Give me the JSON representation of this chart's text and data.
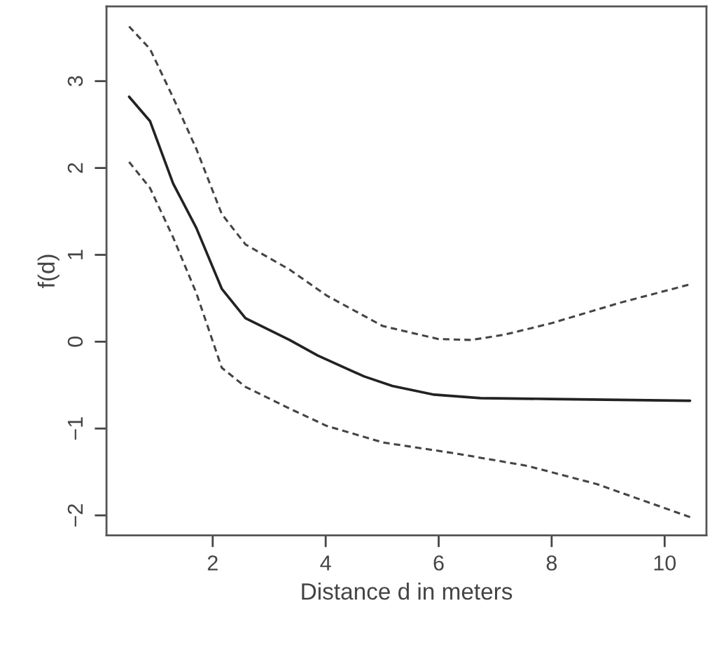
{
  "chart_data": {
    "type": "line",
    "xlabel": "Distance d in meters",
    "ylabel": "f(d)",
    "xlim": [
      0.12,
      10.74
    ],
    "ylim": [
      -2.23,
      3.86
    ],
    "xticks": [
      2,
      4,
      6,
      8,
      10
    ],
    "yticks": [
      -2,
      -1,
      0,
      1,
      2,
      3
    ],
    "grid": false,
    "marker": "none",
    "series": [
      {
        "color": "#222222",
        "line_style": "solid",
        "x": [
          0.52,
          0.89,
          1.3,
          1.71,
          2.16,
          2.58,
          3.36,
          3.86,
          4.68,
          5.18,
          5.92,
          6.74,
          7.98,
          10.45
        ],
        "values": [
          2.82,
          2.54,
          1.82,
          1.31,
          0.61,
          0.27,
          0.02,
          -0.16,
          -0.4,
          -0.51,
          -0.61,
          -0.65,
          -0.66,
          -0.68
        ]
      },
      {
        "color": "#444444",
        "line_style": "dashed",
        "x": [
          0.52,
          0.89,
          1.3,
          1.71,
          2.16,
          2.58,
          3.36,
          4.02,
          5.01,
          6.0,
          6.58,
          7.16,
          7.98,
          9.22,
          10.45
        ],
        "values": [
          3.63,
          3.37,
          2.81,
          2.22,
          1.47,
          1.12,
          0.83,
          0.53,
          0.18,
          0.03,
          0.02,
          0.08,
          0.21,
          0.45,
          0.66
        ]
      },
      {
        "color": "#444444",
        "line_style": "dashed",
        "x": [
          0.52,
          0.89,
          1.3,
          1.71,
          2.16,
          2.58,
          3.36,
          4.02,
          5.01,
          6.33,
          7.57,
          8.8,
          10.45
        ],
        "values": [
          2.07,
          1.77,
          1.2,
          0.56,
          -0.3,
          -0.52,
          -0.77,
          -0.97,
          -1.16,
          -1.29,
          -1.43,
          -1.64,
          -2.02
        ]
      }
    ]
  }
}
